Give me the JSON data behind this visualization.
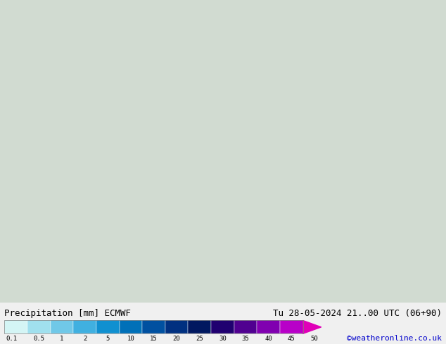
{
  "title_left": "Precipitation [mm] ECMWF",
  "title_right": "Tu 28-05-2024 21..00 UTC (06+90)",
  "credit": "©weatheronline.co.uk",
  "colorbar_values": [
    0.1,
    0.5,
    1,
    2,
    5,
    10,
    15,
    20,
    25,
    30,
    35,
    40,
    45,
    50
  ],
  "colorbar_colors": [
    "#e0f8f8",
    "#b0e8f0",
    "#80d4e8",
    "#50bce0",
    "#20a0d8",
    "#1080c0",
    "#1060a0",
    "#104080",
    "#102060",
    "#300080",
    "#6000a0",
    "#9000c0",
    "#c000d0",
    "#e000b0",
    "#ff00ff"
  ],
  "bg_color": "#f0f0f0",
  "map_bg": "#c8dcc8",
  "title_fontsize": 9,
  "credit_color": "#0000cc",
  "label_color": "#000000"
}
